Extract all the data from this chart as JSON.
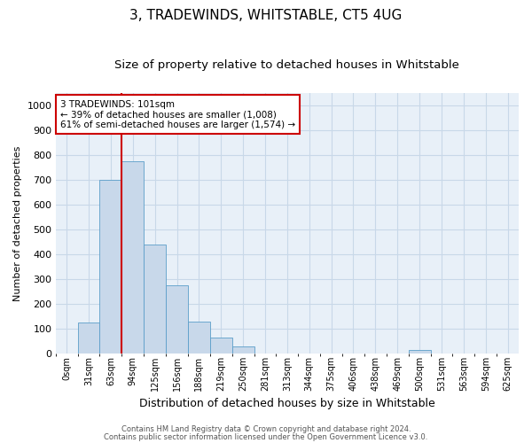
{
  "title": "3, TRADEWINDS, WHITSTABLE, CT5 4UG",
  "subtitle": "Size of property relative to detached houses in Whitstable",
  "xlabel": "Distribution of detached houses by size in Whitstable",
  "ylabel": "Number of detached properties",
  "bar_values": [
    0,
    125,
    700,
    775,
    440,
    275,
    130,
    65,
    30,
    0,
    0,
    0,
    0,
    0,
    0,
    0,
    15,
    0,
    0,
    0,
    0
  ],
  "bin_labels": [
    "0sqm",
    "31sqm",
    "63sqm",
    "94sqm",
    "125sqm",
    "156sqm",
    "188sqm",
    "219sqm",
    "250sqm",
    "281sqm",
    "313sqm",
    "344sqm",
    "375sqm",
    "406sqm",
    "438sqm",
    "469sqm",
    "500sqm",
    "531sqm",
    "563sqm",
    "594sqm",
    "625sqm"
  ],
  "bar_color": "#c8d8ea",
  "bar_edge_color": "#5b9ec9",
  "vline_color": "#cc0000",
  "annotation_text": "3 TRADEWINDS: 101sqm\n← 39% of detached houses are smaller (1,008)\n61% of semi-detached houses are larger (1,574) →",
  "annotation_box_color": "#ffffff",
  "annotation_box_edge": "#cc0000",
  "ylim": [
    0,
    1050
  ],
  "yticks": [
    0,
    100,
    200,
    300,
    400,
    500,
    600,
    700,
    800,
    900,
    1000
  ],
  "footer_line1": "Contains HM Land Registry data © Crown copyright and database right 2024.",
  "footer_line2": "Contains public sector information licensed under the Open Government Licence v3.0.",
  "bg_color": "#ffffff",
  "plot_bg_color": "#e8f0f8",
  "grid_color": "#c8d8e8",
  "title_fontsize": 11,
  "subtitle_fontsize": 9.5
}
